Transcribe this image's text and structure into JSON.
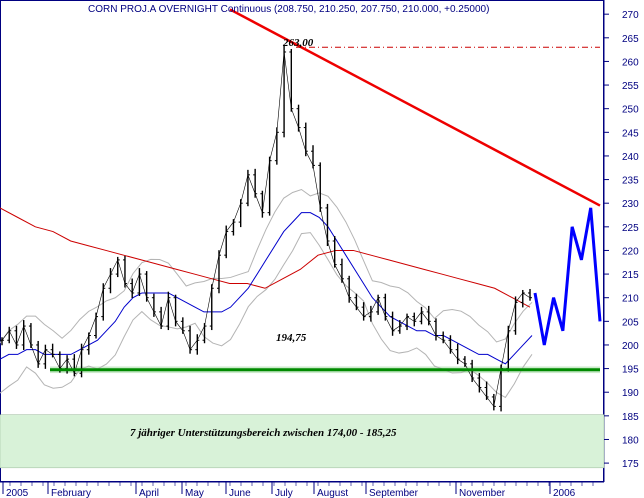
{
  "chart_data": {
    "type": "candlestick",
    "title": "CORN PROJ.A OVERNIGHT Continuous (208.750, 210.250, 207.750, 210.000, +0.25000)",
    "ylim": [
      171,
      273
    ],
    "y_ticks": [
      175,
      180,
      185,
      190,
      195,
      200,
      205,
      210,
      215,
      220,
      225,
      230,
      235,
      240,
      245,
      250,
      255,
      260,
      265,
      270
    ],
    "x_ticks": [
      "2005",
      "February",
      "April",
      "May",
      "June",
      "July",
      "August",
      "September",
      "November",
      "2006"
    ],
    "colors": {
      "price": "#000000",
      "sma_short": "#0000cc",
      "sma_long": "#cc0000",
      "bands": "#b4b4b4",
      "trendline": "#ee0000",
      "support": "#008a00",
      "projection": "#0000ff",
      "zone": "#d8f2d8",
      "axis_text": "#000080"
    },
    "series": [
      {
        "name": "price",
        "values": [
          201,
          203,
          200,
          204,
          200,
          196,
          199,
          198,
          195,
          197,
          194,
          199,
          202,
          206,
          212,
          215,
          218,
          213,
          211,
          215,
          210,
          207,
          204,
          210,
          205,
          203,
          199,
          201,
          204,
          212,
          219,
          224,
          226,
          230,
          236,
          232,
          228,
          239,
          245,
          262,
          250,
          246,
          241,
          238,
          229,
          222,
          217,
          214,
          210,
          208,
          206,
          207,
          210,
          206,
          203,
          204,
          206,
          205,
          207,
          205,
          202,
          201,
          199,
          197,
          196,
          193,
          191,
          189,
          187,
          195,
          203,
          209,
          211,
          210
        ]
      },
      {
        "name": "short average",
        "values": [
          197,
          198,
          198,
          199,
          199,
          198,
          198,
          198,
          198,
          199,
          200,
          201,
          203,
          205,
          208,
          210,
          211,
          211,
          211,
          211,
          210,
          209,
          208,
          207,
          207,
          207,
          208,
          210,
          212,
          215,
          218,
          221,
          224,
          226,
          228,
          228,
          227,
          225,
          222,
          219,
          216,
          213,
          210,
          208,
          206,
          205,
          204,
          203,
          203,
          202,
          202,
          201,
          200,
          199,
          198,
          198,
          197,
          196,
          198,
          200,
          202
        ]
      },
      {
        "name": "long average",
        "values": [
          229,
          227,
          225,
          224,
          222,
          221,
          220,
          219,
          218,
          217,
          216,
          215,
          214,
          213,
          213,
          212,
          214,
          216,
          219,
          220,
          220,
          219,
          218,
          217,
          216,
          215,
          214,
          213,
          212,
          210,
          208
        ]
      },
      {
        "name": "projection",
        "values": [
          211,
          200,
          210,
          203,
          225,
          218,
          229,
          205
        ]
      }
    ],
    "annotations": {
      "peak_label": "263,00",
      "support_label": "194,75",
      "zone_label": "7 jähriger Unterstützungsbereich zwischen 174,00 - 185,25"
    },
    "levels": {
      "peak": 263,
      "support": 194.75,
      "zone_low": 174.0,
      "zone_high": 185.25
    },
    "trendline": {
      "from": 271,
      "to": 229.5
    }
  }
}
